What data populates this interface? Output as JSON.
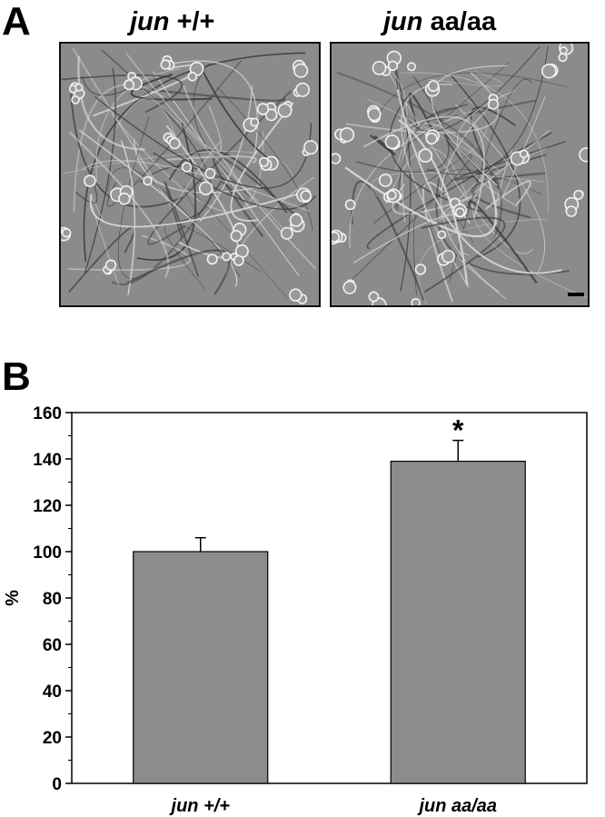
{
  "panel_a": {
    "letter": "A",
    "images": [
      {
        "label_italic": "jun",
        "label_rest": "+/+",
        "description_icon": "phase-contrast-neurons"
      },
      {
        "label_italic": "jun",
        "label_rest": "aa/aa",
        "description_icon": "phase-contrast-neurons"
      }
    ]
  },
  "panel_b": {
    "letter": "B"
  },
  "chart_data": {
    "type": "bar",
    "categories": [
      "jun +/+",
      "jun aa/aa"
    ],
    "values": [
      100,
      139
    ],
    "errors": [
      6,
      9
    ],
    "significance": [
      "",
      "*"
    ],
    "ylabel": "%",
    "xlabel": "",
    "ylim": [
      0,
      160
    ],
    "yticks": [
      0,
      20,
      40,
      60,
      80,
      100,
      120,
      140,
      160
    ],
    "bar_color": "#8c8c8c",
    "grid": false
  }
}
